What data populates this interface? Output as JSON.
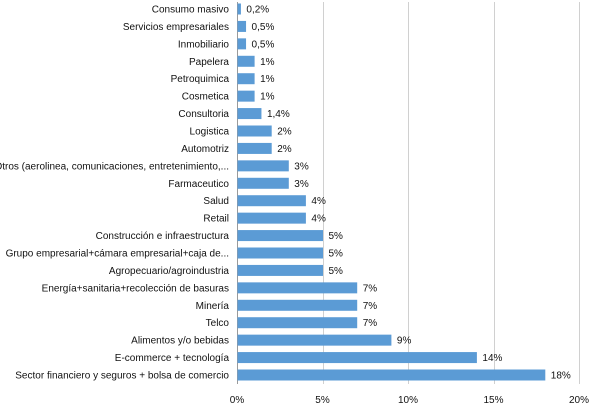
{
  "chart_data": {
    "type": "bar",
    "orientation": "horizontal",
    "categories": [
      "Consumo masivo",
      "Servicios empresariales",
      "Inmobiliario",
      "Papelera",
      "Petroquimica",
      "Cosmetica",
      "Consultoria",
      "Logistica",
      "Automotriz",
      "Otros (aerolinea, comunicaciones, entretenimiento,...",
      "Farmaceutico",
      "Salud",
      "Retail",
      "Construcción e infraestructura",
      "Grupo empresarial+cámara empresarial+caja de...",
      "Agropecuario/agroindustria",
      "Energía+sanitaria+recolección de basuras",
      "Minería",
      "Telco",
      "Alimentos y/o bebidas",
      "E-commerce + tecnología",
      "Sector financiero y seguros + bolsa de comercio"
    ],
    "values": [
      0.2,
      0.5,
      0.5,
      1,
      1,
      1,
      1.4,
      2,
      2,
      3,
      3,
      4,
      4,
      5,
      5,
      5,
      7,
      7,
      7,
      9,
      14,
      18
    ],
    "value_labels": [
      "0,2%",
      "0,5%",
      "0,5%",
      "1%",
      "1%",
      "1%",
      "1,4%",
      "2%",
      "2%",
      "3%",
      "3%",
      "4%",
      "4%",
      "5%",
      "5%",
      "5%",
      "7%",
      "7%",
      "7%",
      "9%",
      "14%",
      "18%"
    ],
    "xlim": [
      0,
      20
    ],
    "xticks": [
      0,
      5,
      10,
      15,
      20
    ],
    "xtick_labels": [
      "0%",
      "5%",
      "10%",
      "15%",
      "20%"
    ],
    "grid": true,
    "legend": "none",
    "bar_color": "#5b9bd5",
    "title": "",
    "xlabel": "",
    "ylabel": ""
  }
}
